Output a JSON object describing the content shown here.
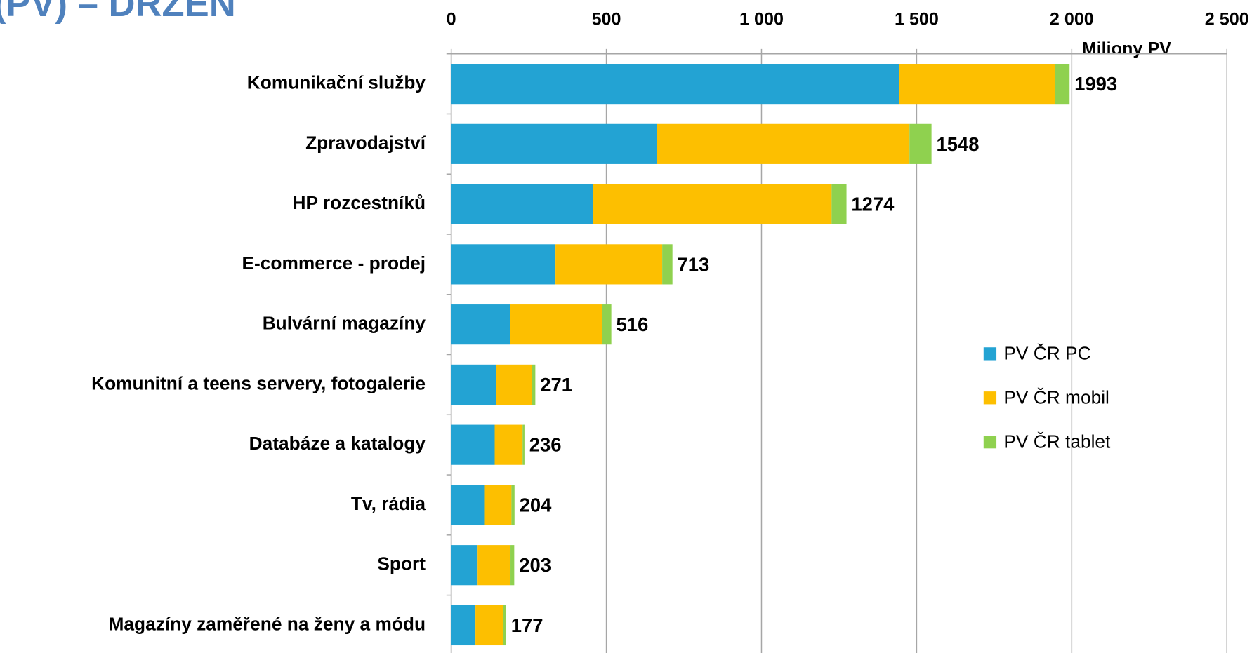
{
  "chart_data": {
    "type": "stacked-barh",
    "title": "(PV) – DRZEN",
    "x_label": "Miliony PV",
    "categories": [
      "Komunikační služby",
      "Zpravodajství",
      "HP rozcestníků",
      "E-commerce - prodej",
      "Bulvární magazíny",
      "Komunitní a teens servery, fotogalerie",
      "Databáze a katalogy",
      "Tv, rádia",
      "Sport",
      "Magazíny zaměřené na ženy a módu"
    ],
    "series": [
      {
        "name": "PV ČR PC",
        "color": "#23a3d3",
        "values": [
          1443,
          662,
          458,
          336,
          189,
          145,
          140,
          106,
          85,
          78
        ]
      },
      {
        "name": "PV ČR mobil",
        "color": "#fdbf00",
        "values": [
          502,
          815,
          768,
          344,
          297,
          116,
          90,
          88,
          106,
          88
        ]
      },
      {
        "name": "PV ČR tablet",
        "color": "#8fd14f",
        "values": [
          48,
          71,
          48,
          33,
          30,
          10,
          6,
          10,
          12,
          11
        ]
      }
    ],
    "totals": [
      1993,
      1548,
      1274,
      713,
      516,
      271,
      236,
      204,
      203,
      177
    ],
    "xlim": [
      0,
      2500
    ],
    "xticks": [
      0,
      500,
      {
        "value": 1000,
        "label": "1 000"
      },
      {
        "value": 1500,
        "label": "1 500"
      },
      {
        "value": 2000,
        "label": "2 000"
      },
      {
        "value": 2500,
        "label": "2 500"
      }
    ],
    "grid": true,
    "legend": "right"
  }
}
